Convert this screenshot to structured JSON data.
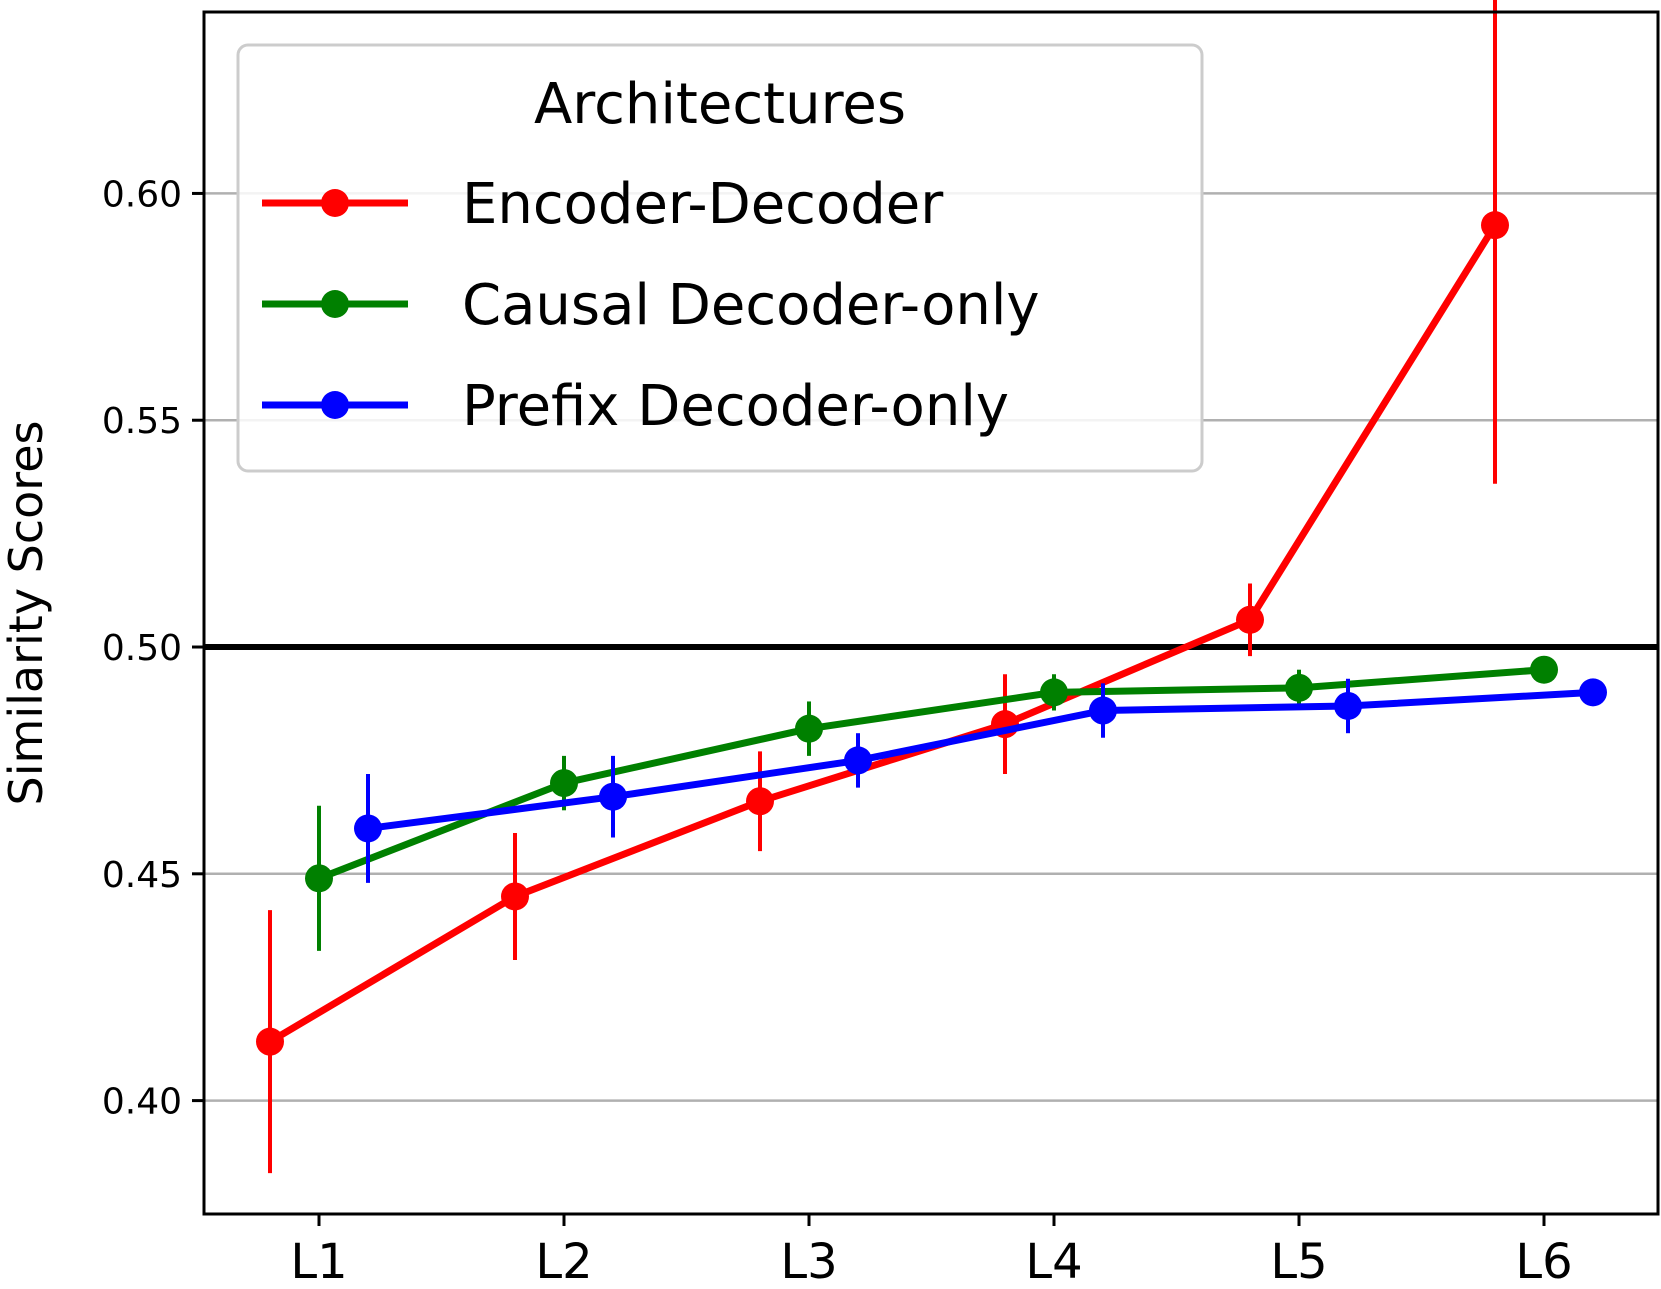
{
  "chart_data": {
    "type": "line",
    "title": "",
    "xlabel": "",
    "ylabel": "Similarity Scores",
    "categories": [
      "L1",
      "L2",
      "L3",
      "L4",
      "L5",
      "L6"
    ],
    "ylim": [
      0.375,
      0.64
    ],
    "yticks": [
      "0.40",
      "0.45",
      "0.50",
      "0.55",
      "0.60"
    ],
    "ytick_values": [
      0.4,
      0.45,
      0.5,
      0.55,
      0.6
    ],
    "grid": "horizontal",
    "reference_line": 0.5,
    "legend": {
      "title": "Architectures",
      "placement": "upper-left"
    },
    "series": [
      {
        "name": "Encoder-Decoder",
        "color": "#ff0000",
        "category_offset": -0.2,
        "values": [
          0.413,
          0.445,
          0.466,
          0.483,
          0.506,
          0.593
        ],
        "errors": [
          0.029,
          0.014,
          0.011,
          0.011,
          0.008,
          0.057
        ]
      },
      {
        "name": "Causal Decoder-only",
        "color": "#008000",
        "category_offset": 0.0,
        "values": [
          0.449,
          0.47,
          0.482,
          0.49,
          0.491,
          0.495
        ],
        "errors": [
          0.016,
          0.006,
          0.006,
          0.004,
          0.004,
          0.002
        ]
      },
      {
        "name": "Prefix Decoder-only",
        "color": "#0000ff",
        "category_offset": 0.2,
        "values": [
          0.46,
          0.467,
          0.475,
          0.486,
          0.487,
          0.49
        ],
        "errors": [
          0.012,
          0.009,
          0.006,
          0.006,
          0.006,
          0.002
        ]
      }
    ]
  }
}
